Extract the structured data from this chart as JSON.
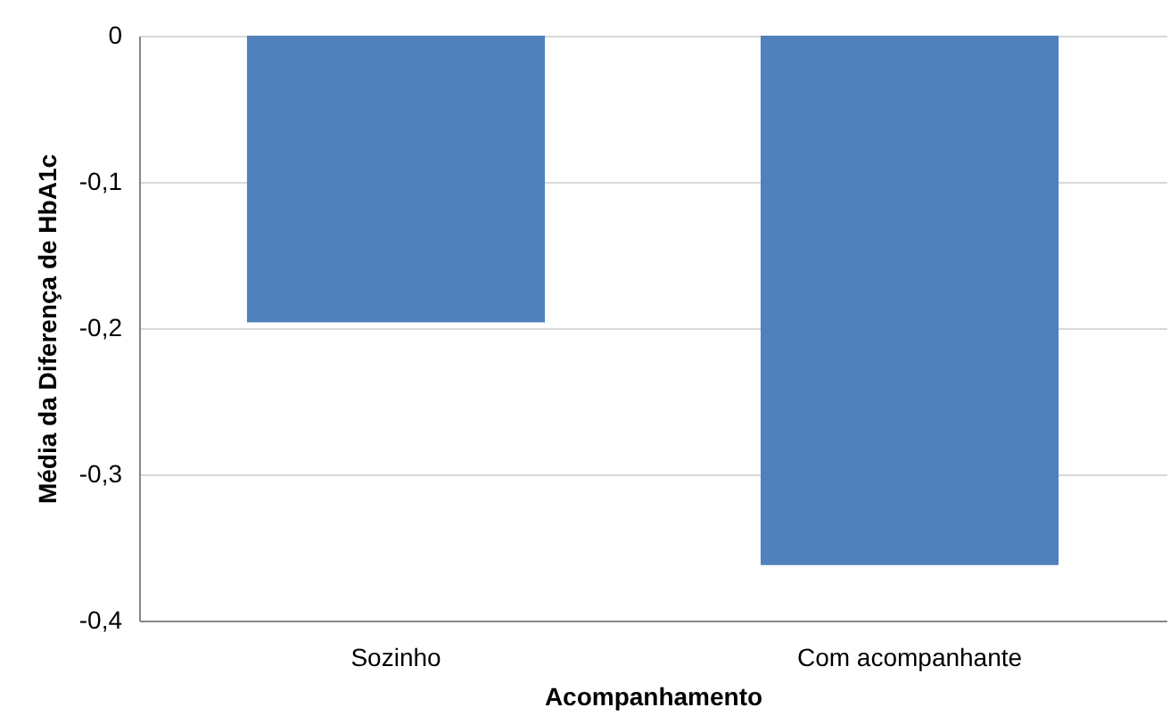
{
  "chart_data": {
    "type": "bar",
    "xlabel": "Acompanhamento",
    "ylabel": "Média da Diferença de HbA1c",
    "categories": [
      "Sozinho",
      "Com acompanhante"
    ],
    "values": [
      -0.196,
      -0.362
    ],
    "color": "#4f81bd",
    "ylim": [
      -0.4,
      0
    ],
    "yticks": [
      0,
      {
        "value": -0.1,
        "label": "-0,1"
      },
      {
        "value": -0.2,
        "label": "-0,2"
      },
      {
        "value": -0.3,
        "label": "-0,3"
      },
      {
        "value": -0.4,
        "label": "-0,4"
      }
    ],
    "grid": "y"
  }
}
